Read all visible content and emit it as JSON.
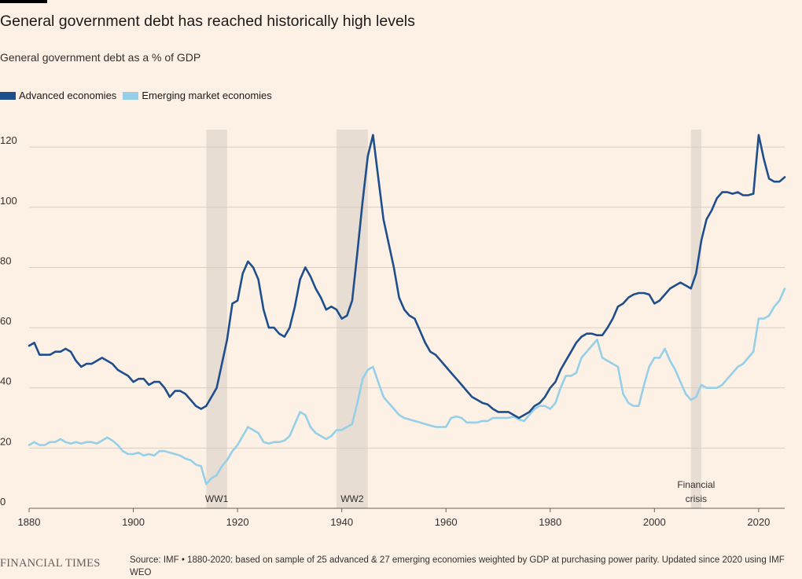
{
  "title": "General government debt has reached historically high levels",
  "subtitle": "General government debt as a % of GDP",
  "source": "Source: IMF • 1880-2020: based on sample of 25 advanced & 27 emerging economies weighted by GDP at purchasing power parity. Updated since 2020 using IMF WEO",
  "logo": "FINANCIAL TIMES",
  "colors": {
    "background": "#fdf1e5",
    "advanced": "#1f4e8c",
    "emerging": "#96cfe8",
    "shade": "#e8ddd3",
    "grid": "#d9cdc2"
  },
  "chart_data": {
    "type": "line",
    "xlim": [
      1880,
      2025
    ],
    "ylim": [
      0,
      125
    ],
    "x_ticks": [
      1880,
      1900,
      1920,
      1940,
      1960,
      1980,
      2000,
      2020
    ],
    "y_ticks": [
      0,
      20,
      40,
      60,
      80,
      100,
      120
    ],
    "grid": true,
    "legend_position": "top-left",
    "shaded_periods": [
      {
        "label": "WW1",
        "start": 1914,
        "end": 1918
      },
      {
        "label": "WW2",
        "start": 1939,
        "end": 1945
      },
      {
        "label": "Financial crisis",
        "label_lines": [
          "Financial",
          "crisis"
        ],
        "start": 2007,
        "end": 2009
      }
    ],
    "series": [
      {
        "name": "Advanced economies",
        "color": "#1f4e8c",
        "points": [
          [
            1880,
            54
          ],
          [
            1881,
            55
          ],
          [
            1882,
            51
          ],
          [
            1883,
            51
          ],
          [
            1884,
            51
          ],
          [
            1885,
            52
          ],
          [
            1886,
            52
          ],
          [
            1887,
            53
          ],
          [
            1888,
            52
          ],
          [
            1889,
            49
          ],
          [
            1890,
            47
          ],
          [
            1891,
            48
          ],
          [
            1892,
            48
          ],
          [
            1893,
            49
          ],
          [
            1894,
            50
          ],
          [
            1895,
            49
          ],
          [
            1896,
            48
          ],
          [
            1897,
            46
          ],
          [
            1898,
            45
          ],
          [
            1899,
            44
          ],
          [
            1900,
            42
          ],
          [
            1901,
            43
          ],
          [
            1902,
            43
          ],
          [
            1903,
            41
          ],
          [
            1904,
            42
          ],
          [
            1905,
            42
          ],
          [
            1906,
            40
          ],
          [
            1907,
            37
          ],
          [
            1908,
            39
          ],
          [
            1909,
            39
          ],
          [
            1910,
            38
          ],
          [
            1911,
            36
          ],
          [
            1912,
            34
          ],
          [
            1913,
            33
          ],
          [
            1914,
            34
          ],
          [
            1915,
            37
          ],
          [
            1916,
            40
          ],
          [
            1917,
            48
          ],
          [
            1918,
            56
          ],
          [
            1919,
            68
          ],
          [
            1920,
            69
          ],
          [
            1921,
            78
          ],
          [
            1922,
            82
          ],
          [
            1923,
            80
          ],
          [
            1924,
            76
          ],
          [
            1925,
            66
          ],
          [
            1926,
            60
          ],
          [
            1927,
            60
          ],
          [
            1928,
            58
          ],
          [
            1929,
            57
          ],
          [
            1930,
            60
          ],
          [
            1931,
            67
          ],
          [
            1932,
            76
          ],
          [
            1933,
            80
          ],
          [
            1934,
            77
          ],
          [
            1935,
            73
          ],
          [
            1936,
            70
          ],
          [
            1937,
            66
          ],
          [
            1938,
            67
          ],
          [
            1939,
            66
          ],
          [
            1940,
            63
          ],
          [
            1941,
            64
          ],
          [
            1942,
            69
          ],
          [
            1943,
            85
          ],
          [
            1944,
            102
          ],
          [
            1945,
            117
          ],
          [
            1946,
            124
          ],
          [
            1947,
            110
          ],
          [
            1948,
            96
          ],
          [
            1949,
            88
          ],
          [
            1950,
            80
          ],
          [
            1951,
            70
          ],
          [
            1952,
            66
          ],
          [
            1953,
            64
          ],
          [
            1954,
            63
          ],
          [
            1955,
            59
          ],
          [
            1956,
            55
          ],
          [
            1957,
            52
          ],
          [
            1958,
            51
          ],
          [
            1959,
            49
          ],
          [
            1960,
            47
          ],
          [
            1961,
            45
          ],
          [
            1962,
            43
          ],
          [
            1963,
            41
          ],
          [
            1964,
            39
          ],
          [
            1965,
            37
          ],
          [
            1966,
            36
          ],
          [
            1967,
            35
          ],
          [
            1968,
            34.5
          ],
          [
            1969,
            33
          ],
          [
            1970,
            32
          ],
          [
            1971,
            32
          ],
          [
            1972,
            32
          ],
          [
            1973,
            31
          ],
          [
            1974,
            30
          ],
          [
            1975,
            31
          ],
          [
            1976,
            32
          ],
          [
            1977,
            34
          ],
          [
            1978,
            35
          ],
          [
            1979,
            37
          ],
          [
            1980,
            40
          ],
          [
            1981,
            42
          ],
          [
            1982,
            46
          ],
          [
            1983,
            49
          ],
          [
            1984,
            52
          ],
          [
            1985,
            55
          ],
          [
            1986,
            57
          ],
          [
            1987,
            58
          ],
          [
            1988,
            58
          ],
          [
            1989,
            57.5
          ],
          [
            1990,
            57.5
          ],
          [
            1991,
            60
          ],
          [
            1992,
            63
          ],
          [
            1993,
            67
          ],
          [
            1994,
            68
          ],
          [
            1995,
            70
          ],
          [
            1996,
            71
          ],
          [
            1997,
            71.5
          ],
          [
            1998,
            71.5
          ],
          [
            1999,
            71
          ],
          [
            2000,
            68
          ],
          [
            2001,
            69
          ],
          [
            2002,
            71
          ],
          [
            2003,
            73
          ],
          [
            2004,
            74
          ],
          [
            2005,
            75
          ],
          [
            2006,
            74
          ],
          [
            2007,
            73
          ],
          [
            2008,
            78
          ],
          [
            2009,
            89
          ],
          [
            2010,
            96
          ],
          [
            2011,
            99
          ],
          [
            2012,
            103
          ],
          [
            2013,
            105
          ],
          [
            2014,
            105
          ],
          [
            2015,
            104.5
          ],
          [
            2016,
            105
          ],
          [
            2017,
            104
          ],
          [
            2018,
            104
          ],
          [
            2019,
            104.5
          ],
          [
            2020,
            124
          ],
          [
            2021,
            116
          ],
          [
            2022,
            109.5
          ],
          [
            2023,
            108.5
          ],
          [
            2024,
            108.5
          ],
          [
            2025,
            110
          ]
        ]
      },
      {
        "name": "Emerging market economies",
        "color": "#96cfe8",
        "points": [
          [
            1880,
            21
          ],
          [
            1881,
            22
          ],
          [
            1882,
            21
          ],
          [
            1883,
            21
          ],
          [
            1884,
            22
          ],
          [
            1885,
            22
          ],
          [
            1886,
            23
          ],
          [
            1887,
            22
          ],
          [
            1888,
            21.5
          ],
          [
            1889,
            22
          ],
          [
            1890,
            21.5
          ],
          [
            1891,
            22
          ],
          [
            1892,
            22
          ],
          [
            1893,
            21.5
          ],
          [
            1894,
            22.5
          ],
          [
            1895,
            23.5
          ],
          [
            1896,
            22.5
          ],
          [
            1897,
            21
          ],
          [
            1898,
            19
          ],
          [
            1899,
            18
          ],
          [
            1900,
            18
          ],
          [
            1901,
            18.5
          ],
          [
            1902,
            17.5
          ],
          [
            1903,
            18
          ],
          [
            1904,
            17.5
          ],
          [
            1905,
            19
          ],
          [
            1906,
            19
          ],
          [
            1907,
            18.5
          ],
          [
            1908,
            18
          ],
          [
            1909,
            17.5
          ],
          [
            1910,
            16.5
          ],
          [
            1911,
            16
          ],
          [
            1912,
            14.5
          ],
          [
            1913,
            14
          ],
          [
            1914,
            8
          ],
          [
            1915,
            10
          ],
          [
            1916,
            11
          ],
          [
            1917,
            14
          ],
          [
            1918,
            16
          ],
          [
            1919,
            19
          ],
          [
            1920,
            21
          ],
          [
            1921,
            24
          ],
          [
            1922,
            27
          ],
          [
            1923,
            26
          ],
          [
            1924,
            25
          ],
          [
            1925,
            22
          ],
          [
            1926,
            21.5
          ],
          [
            1927,
            22
          ],
          [
            1928,
            22
          ],
          [
            1929,
            22.5
          ],
          [
            1930,
            24
          ],
          [
            1931,
            28
          ],
          [
            1932,
            32
          ],
          [
            1933,
            31
          ],
          [
            1934,
            27
          ],
          [
            1935,
            25
          ],
          [
            1936,
            24
          ],
          [
            1937,
            23
          ],
          [
            1938,
            24
          ],
          [
            1939,
            26
          ],
          [
            1940,
            26
          ],
          [
            1941,
            27
          ],
          [
            1942,
            28
          ],
          [
            1943,
            35
          ],
          [
            1944,
            43
          ],
          [
            1945,
            46
          ],
          [
            1946,
            47
          ],
          [
            1947,
            42
          ],
          [
            1948,
            37
          ],
          [
            1949,
            35
          ],
          [
            1950,
            33
          ],
          [
            1951,
            31
          ],
          [
            1952,
            30
          ],
          [
            1953,
            29.5
          ],
          [
            1954,
            29
          ],
          [
            1955,
            28.5
          ],
          [
            1956,
            28
          ],
          [
            1957,
            27.5
          ],
          [
            1958,
            27
          ],
          [
            1959,
            27
          ],
          [
            1960,
            27
          ],
          [
            1961,
            30
          ],
          [
            1962,
            30.5
          ],
          [
            1963,
            30
          ],
          [
            1964,
            28.5
          ],
          [
            1965,
            28.5
          ],
          [
            1966,
            28.5
          ],
          [
            1967,
            29
          ],
          [
            1968,
            29
          ],
          [
            1969,
            30
          ],
          [
            1970,
            30
          ],
          [
            1971,
            30
          ],
          [
            1972,
            30
          ],
          [
            1973,
            30.5
          ],
          [
            1974,
            29.5
          ],
          [
            1975,
            29
          ],
          [
            1976,
            31
          ],
          [
            1977,
            33
          ],
          [
            1978,
            34
          ],
          [
            1979,
            34
          ],
          [
            1980,
            33
          ],
          [
            1981,
            35
          ],
          [
            1982,
            40
          ],
          [
            1983,
            44
          ],
          [
            1984,
            44
          ],
          [
            1985,
            45
          ],
          [
            1986,
            50
          ],
          [
            1987,
            52
          ],
          [
            1988,
            54
          ],
          [
            1989,
            56
          ],
          [
            1990,
            50
          ],
          [
            1991,
            49
          ],
          [
            1992,
            48
          ],
          [
            1993,
            47
          ],
          [
            1994,
            38
          ],
          [
            1995,
            35
          ],
          [
            1996,
            34
          ],
          [
            1997,
            34
          ],
          [
            1998,
            41
          ],
          [
            1999,
            47
          ],
          [
            2000,
            50
          ],
          [
            2001,
            50
          ],
          [
            2002,
            53
          ],
          [
            2003,
            49
          ],
          [
            2004,
            46
          ],
          [
            2005,
            42
          ],
          [
            2006,
            38
          ],
          [
            2007,
            36
          ],
          [
            2008,
            37
          ],
          [
            2009,
            41
          ],
          [
            2010,
            40
          ],
          [
            2011,
            40
          ],
          [
            2012,
            40
          ],
          [
            2013,
            41
          ],
          [
            2014,
            43
          ],
          [
            2015,
            45
          ],
          [
            2016,
            47
          ],
          [
            2017,
            48
          ],
          [
            2018,
            50
          ],
          [
            2019,
            52
          ],
          [
            2020,
            63
          ],
          [
            2021,
            63
          ],
          [
            2022,
            64
          ],
          [
            2023,
            67
          ],
          [
            2024,
            69
          ],
          [
            2025,
            73
          ]
        ]
      }
    ]
  }
}
